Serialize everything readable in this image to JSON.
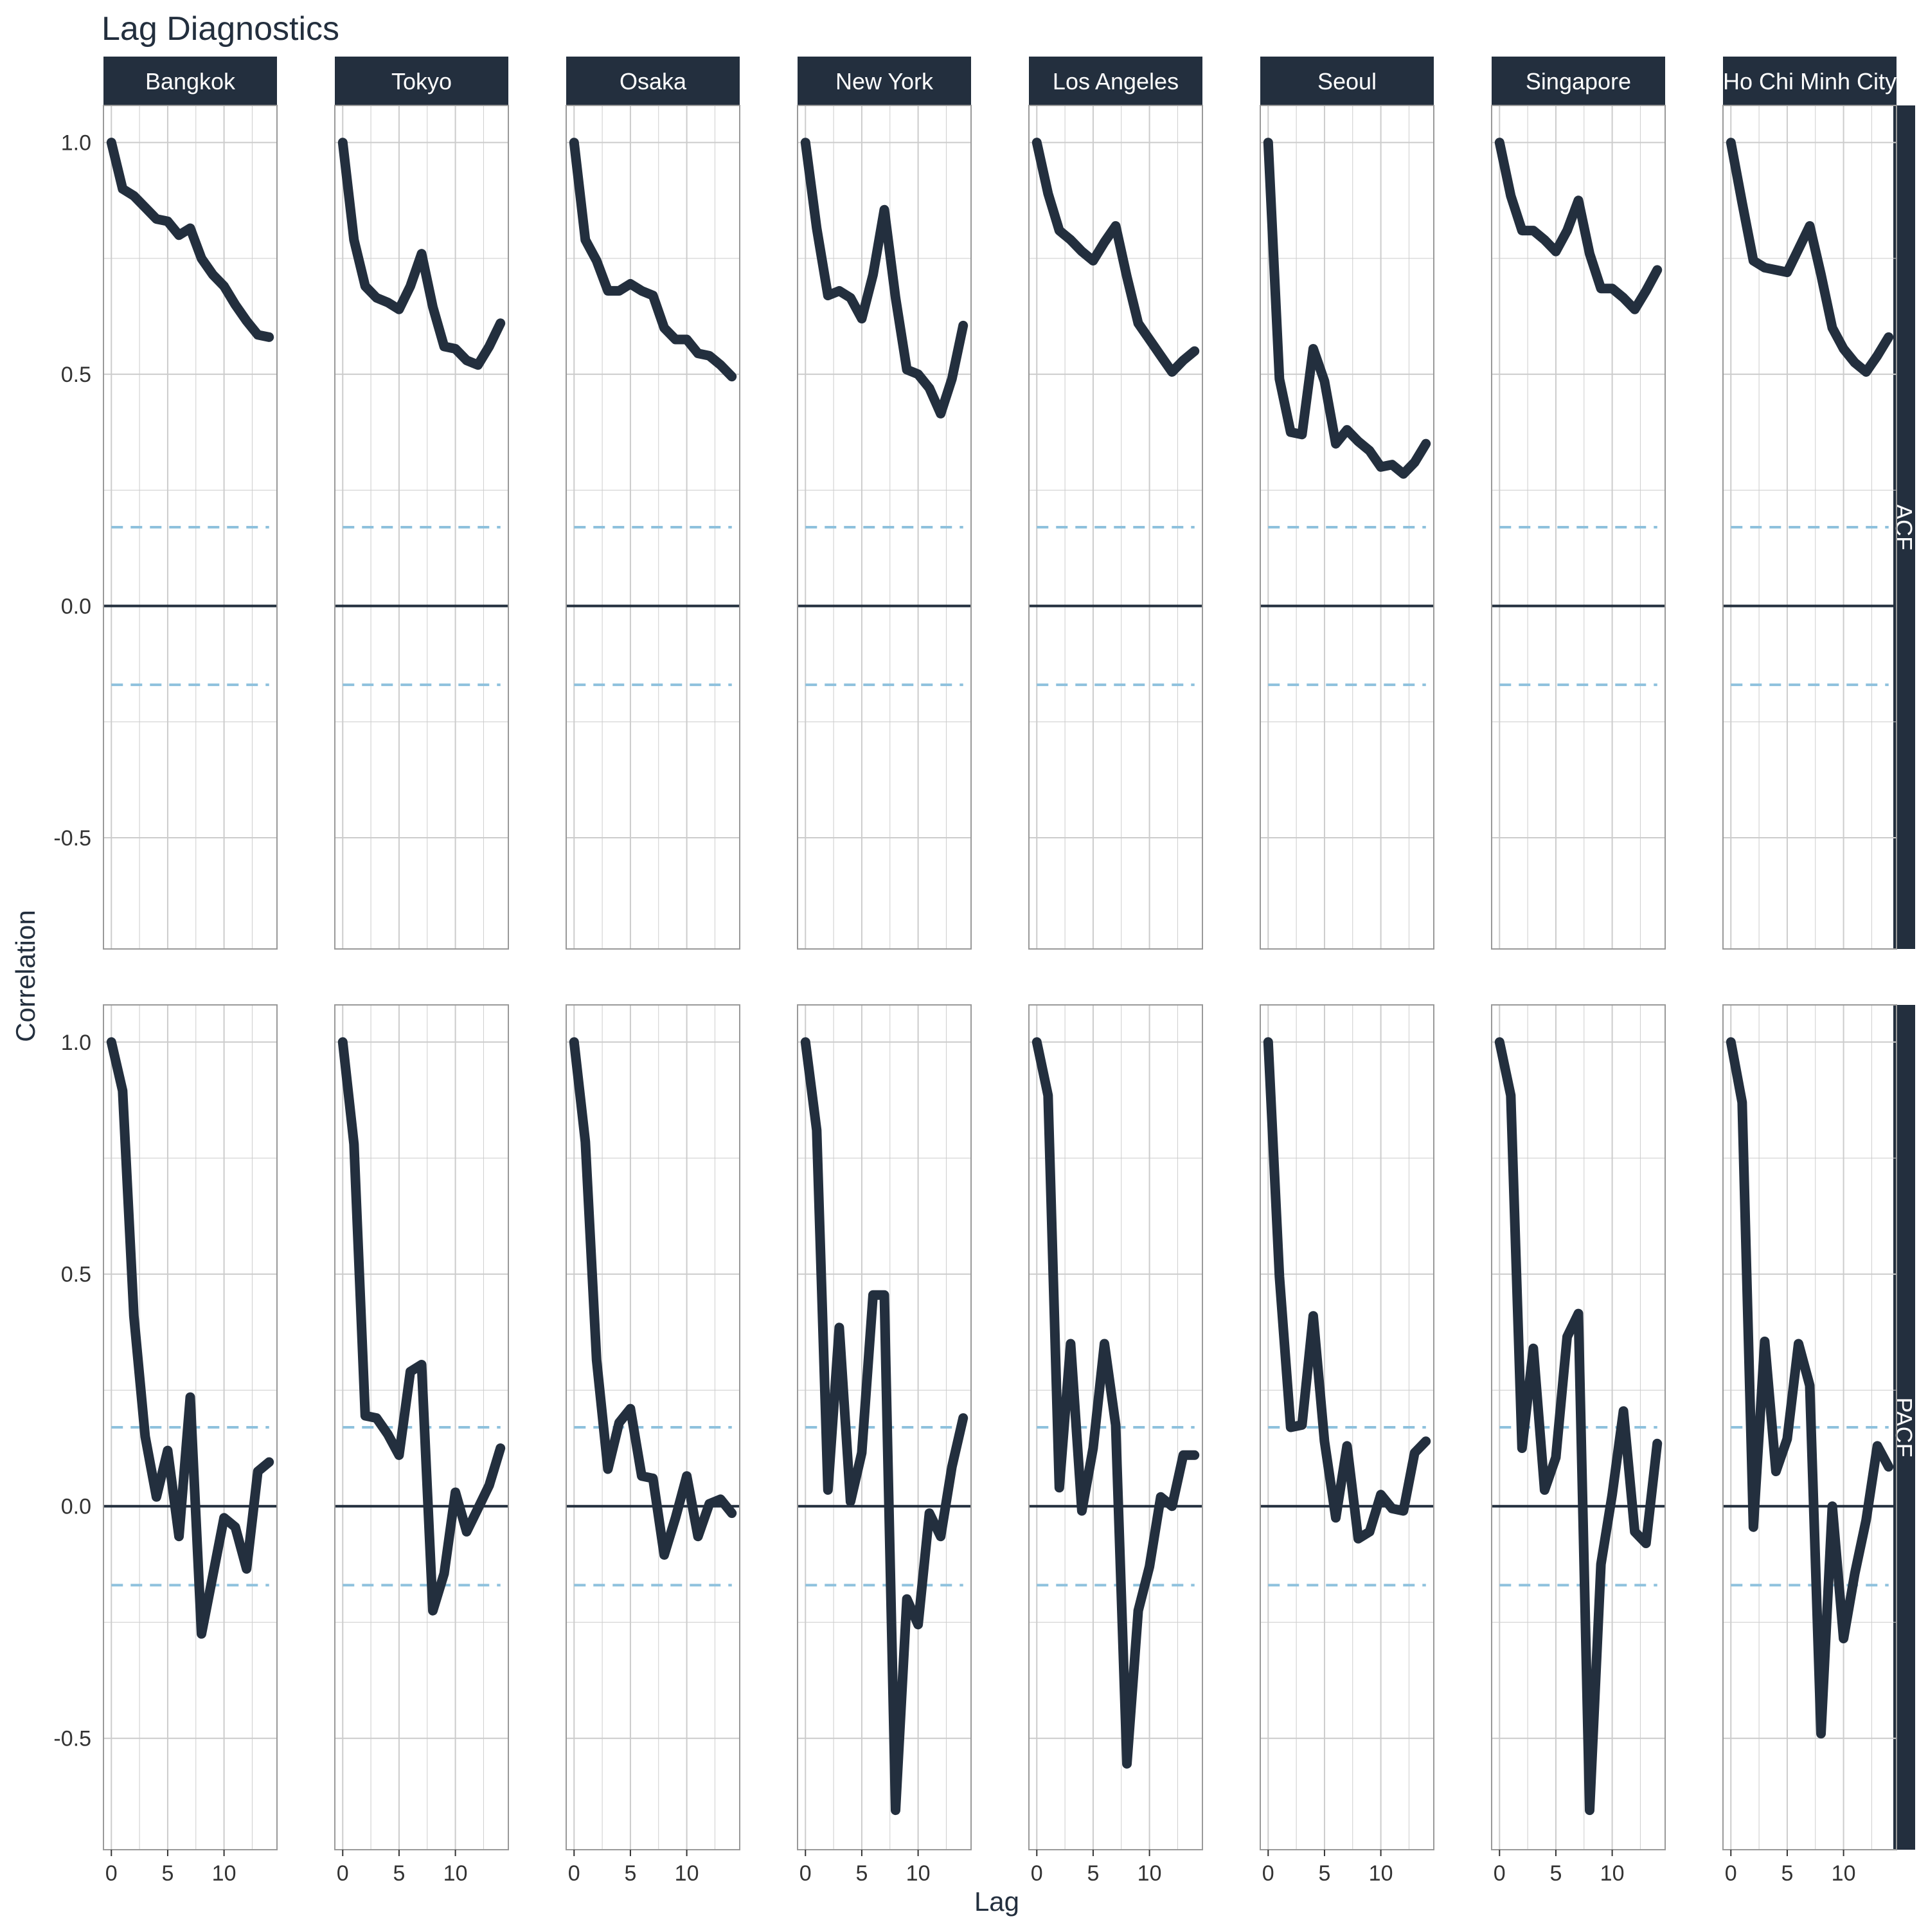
{
  "chart_data": {
    "type": "line",
    "title": "Lag Diagnostics",
    "xlabel": "Lag",
    "ylabel": "Correlation",
    "x_ticks": [
      0,
      5,
      10
    ],
    "y_ticks": [
      -0.5,
      0.0,
      0.5,
      1.0
    ],
    "y_tick_labels": [
      "-0.5",
      "0.0",
      "0.5",
      "1.0"
    ],
    "x_range": [
      -0.7,
      14.7
    ],
    "y_range": [
      -0.74,
      1.08
    ],
    "confidence_band": 0.17,
    "grid": true,
    "colors": {
      "line": "#232f3e",
      "strip": "#232f3e",
      "strip_text": "#ffffff",
      "band": "#8ec1dd",
      "zero_line": "#232f3e",
      "grid": "#cccccc",
      "panel_border": "#999999",
      "title": "#232f3e"
    },
    "cities": [
      "Bangkok",
      "Tokyo",
      "Osaka",
      "New York",
      "Los Angeles",
      "Seoul",
      "Singapore",
      "Ho Chi Minh City"
    ],
    "rows": [
      {
        "name": "ACF",
        "series": [
          {
            "name": "Bangkok",
            "x": [
              0,
              1,
              2,
              3,
              4,
              5,
              6,
              7,
              8,
              9,
              10,
              11,
              12,
              13,
              14
            ],
            "values": [
              1.0,
              0.9,
              0.885,
              0.86,
              0.835,
              0.83,
              0.8,
              0.815,
              0.75,
              0.715,
              0.69,
              0.65,
              0.615,
              0.585,
              0.58
            ]
          },
          {
            "name": "Tokyo",
            "x": [
              0,
              1,
              2,
              3,
              4,
              5,
              6,
              7,
              8,
              9,
              10,
              11,
              12,
              13,
              14
            ],
            "values": [
              1.0,
              0.79,
              0.69,
              0.665,
              0.655,
              0.64,
              0.69,
              0.76,
              0.645,
              0.56,
              0.555,
              0.53,
              0.52,
              0.56,
              0.61
            ]
          },
          {
            "name": "Osaka",
            "x": [
              0,
              1,
              2,
              3,
              4,
              5,
              6,
              7,
              8,
              9,
              10,
              11,
              12,
              13,
              14
            ],
            "values": [
              1.0,
              0.79,
              0.745,
              0.68,
              0.68,
              0.695,
              0.68,
              0.67,
              0.6,
              0.575,
              0.575,
              0.545,
              0.54,
              0.52,
              0.495
            ]
          },
          {
            "name": "New York",
            "x": [
              0,
              1,
              2,
              3,
              4,
              5,
              6,
              7,
              8,
              9,
              10,
              11,
              12,
              13,
              14
            ],
            "values": [
              1.0,
              0.815,
              0.67,
              0.68,
              0.665,
              0.62,
              0.715,
              0.855,
              0.665,
              0.51,
              0.5,
              0.47,
              0.415,
              0.49,
              0.605
            ]
          },
          {
            "name": "Los Angeles",
            "x": [
              0,
              1,
              2,
              3,
              4,
              5,
              6,
              7,
              8,
              9,
              10,
              11,
              12,
              13,
              14
            ],
            "values": [
              1.0,
              0.89,
              0.81,
              0.79,
              0.765,
              0.745,
              0.785,
              0.82,
              0.71,
              0.61,
              0.575,
              0.54,
              0.505,
              0.53,
              0.55
            ]
          },
          {
            "name": "Seoul",
            "x": [
              0,
              1,
              2,
              3,
              4,
              5,
              6,
              7,
              8,
              9,
              10,
              11,
              12,
              13,
              14
            ],
            "values": [
              1.0,
              0.49,
              0.375,
              0.37,
              0.555,
              0.485,
              0.35,
              0.38,
              0.355,
              0.335,
              0.3,
              0.305,
              0.285,
              0.31,
              0.35
            ]
          },
          {
            "name": "Singapore",
            "x": [
              0,
              1,
              2,
              3,
              4,
              5,
              6,
              7,
              8,
              9,
              10,
              11,
              12,
              13,
              14
            ],
            "values": [
              1.0,
              0.885,
              0.81,
              0.81,
              0.79,
              0.765,
              0.81,
              0.875,
              0.76,
              0.685,
              0.685,
              0.665,
              0.64,
              0.68,
              0.725
            ]
          },
          {
            "name": "Ho Chi Minh City",
            "x": [
              0,
              1,
              2,
              3,
              4,
              5,
              6,
              7,
              8,
              9,
              10,
              11,
              12,
              13,
              14
            ],
            "values": [
              1.0,
              0.87,
              0.745,
              0.73,
              0.725,
              0.72,
              0.77,
              0.82,
              0.715,
              0.6,
              0.555,
              0.525,
              0.505,
              0.54,
              0.58
            ]
          }
        ]
      },
      {
        "name": "PACF",
        "series": [
          {
            "name": "Bangkok",
            "x": [
              0,
              1,
              2,
              3,
              4,
              5,
              6,
              7,
              8,
              9,
              10,
              11,
              12,
              13,
              14
            ],
            "values": [
              1.0,
              0.895,
              0.41,
              0.15,
              0.02,
              0.12,
              -0.065,
              0.235,
              -0.275,
              -0.15,
              -0.025,
              -0.045,
              -0.135,
              0.075,
              0.095
            ]
          },
          {
            "name": "Tokyo",
            "x": [
              0,
              1,
              2,
              3,
              4,
              5,
              6,
              7,
              8,
              9,
              10,
              11,
              12,
              13,
              14
            ],
            "values": [
              1.0,
              0.78,
              0.195,
              0.19,
              0.155,
              0.11,
              0.29,
              0.305,
              -0.225,
              -0.145,
              0.03,
              -0.055,
              -0.005,
              0.045,
              0.125
            ]
          },
          {
            "name": "Osaka",
            "x": [
              0,
              1,
              2,
              3,
              4,
              5,
              6,
              7,
              8,
              9,
              10,
              11,
              12,
              13,
              14
            ],
            "values": [
              1.0,
              0.785,
              0.315,
              0.08,
              0.18,
              0.21,
              0.065,
              0.06,
              -0.105,
              -0.025,
              0.065,
              -0.065,
              0.005,
              0.015,
              -0.015
            ]
          },
          {
            "name": "New York",
            "x": [
              0,
              1,
              2,
              3,
              4,
              5,
              6,
              7,
              8,
              9,
              10,
              11,
              12,
              13,
              14
            ],
            "values": [
              1.0,
              0.81,
              0.035,
              0.385,
              0.01,
              0.115,
              0.455,
              0.455,
              -0.655,
              -0.2,
              -0.255,
              -0.015,
              -0.065,
              0.085,
              0.19
            ]
          },
          {
            "name": "Los Angeles",
            "x": [
              0,
              1,
              2,
              3,
              4,
              5,
              6,
              7,
              8,
              9,
              10,
              11,
              12,
              13,
              14
            ],
            "values": [
              1.0,
              0.885,
              0.04,
              0.35,
              -0.01,
              0.125,
              0.35,
              0.175,
              -0.555,
              -0.225,
              -0.13,
              0.02,
              0.0,
              0.11,
              0.11
            ]
          },
          {
            "name": "Seoul",
            "x": [
              0,
              1,
              2,
              3,
              4,
              5,
              6,
              7,
              8,
              9,
              10,
              11,
              12,
              13,
              14
            ],
            "values": [
              1.0,
              0.495,
              0.17,
              0.175,
              0.41,
              0.14,
              -0.025,
              0.13,
              -0.07,
              -0.055,
              0.025,
              -0.005,
              -0.01,
              0.115,
              0.14
            ]
          },
          {
            "name": "Singapore",
            "x": [
              0,
              1,
              2,
              3,
              4,
              5,
              6,
              7,
              8,
              9,
              10,
              11,
              12,
              13,
              14
            ],
            "values": [
              1.0,
              0.885,
              0.125,
              0.34,
              0.035,
              0.105,
              0.365,
              0.415,
              -0.655,
              -0.125,
              0.025,
              0.205,
              -0.055,
              -0.08,
              0.135
            ]
          },
          {
            "name": "Ho Chi Minh City",
            "x": [
              0,
              1,
              2,
              3,
              4,
              5,
              6,
              7,
              8,
              9,
              10,
              11,
              12,
              13,
              14
            ],
            "values": [
              1.0,
              0.87,
              -0.045,
              0.355,
              0.075,
              0.145,
              0.35,
              0.26,
              -0.49,
              0.0,
              -0.285,
              -0.145,
              -0.03,
              0.13,
              0.085
            ]
          }
        ]
      }
    ]
  }
}
